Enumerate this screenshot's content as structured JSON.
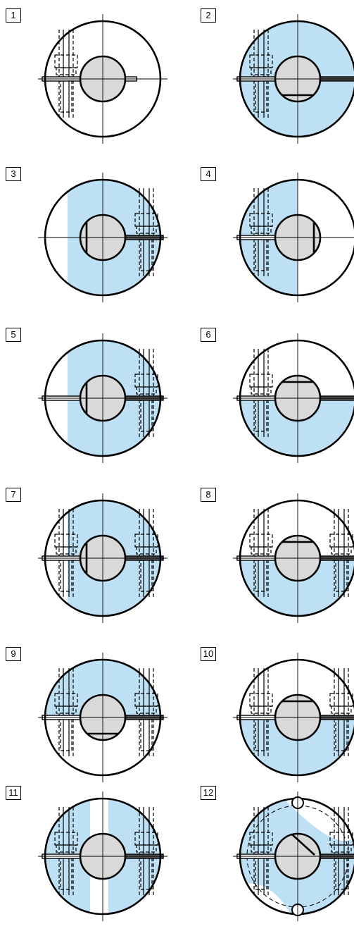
{
  "colors": {
    "fill": "#bde0f5",
    "hub": "#d9d9d9",
    "line": "#000000"
  },
  "figures": [
    {
      "label": "1",
      "fill": "none",
      "slit": "left-full-right-key",
      "bolts": "left",
      "flat": "none"
    },
    {
      "label": "2",
      "fill": "full",
      "slit": "both",
      "bolts": "left",
      "flat": "bottom"
    },
    {
      "label": "3",
      "fill": "band",
      "slit": "right",
      "bolts": "right",
      "flat": "left"
    },
    {
      "label": "4",
      "fill": "left",
      "slit": "left",
      "bolts": "left",
      "flat": "right"
    },
    {
      "label": "5",
      "fill": "band",
      "slit": "both",
      "bolts": "right",
      "flat": "left"
    },
    {
      "label": "6",
      "fill": "bottom",
      "slit": "both",
      "bolts": "left",
      "flat": "top"
    },
    {
      "label": "7",
      "fill": "band",
      "slit": "both",
      "bolts": "both",
      "flat": "left"
    },
    {
      "label": "8",
      "fill": "bottom",
      "slit": "both",
      "bolts": "both",
      "flat": "top"
    },
    {
      "label": "9",
      "fill": "top",
      "slit": "both",
      "bolts": "both",
      "flat": "bottom"
    },
    {
      "label": "10",
      "fill": "bottom",
      "slit": "both",
      "bolts": "both",
      "flat": "top"
    },
    {
      "label": "11",
      "fill": "split",
      "slit": "both",
      "bolts": "both",
      "flat": "none"
    },
    {
      "label": "12",
      "fill": "twin",
      "slit": "both",
      "bolts": "both",
      "flat": "diag"
    }
  ]
}
